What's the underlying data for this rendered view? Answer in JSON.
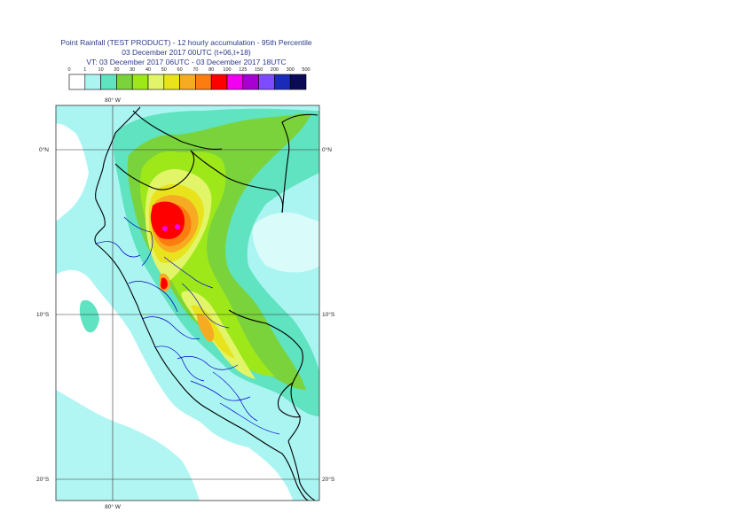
{
  "header": {
    "title": "Point Rainfall (TEST PRODUCT) - 12 hourly accumulation - 95th Percentile",
    "base_time": "03 December 2017 00UTC (t+06,t+18)",
    "valid_time": "VT: 03 December 2017 06UTC - 03 December 2017 18UTC"
  },
  "legend": {
    "thresholds": [
      "0",
      "1",
      "10",
      "20",
      "30",
      "40",
      "50",
      "60",
      "70",
      "80",
      "100",
      "125",
      "150",
      "200",
      "300",
      "500"
    ],
    "colors": [
      "#ffffff",
      "#aaf5f2",
      "#5fe3c0",
      "#7bd33b",
      "#9ee81a",
      "#e2f569",
      "#e8e31c",
      "#f7ab22",
      "#fb7d0f",
      "#ff0000",
      "#f200f2",
      "#a600d2",
      "#7d4cff",
      "#1a2bb8",
      "#0a0a55"
    ]
  },
  "map": {
    "lon_label_top": "80° W",
    "lon_label_bottom": "80° W",
    "lat_labels_left": [
      "0°N",
      "10°S",
      "20°S"
    ],
    "lat_labels_right": [
      "0°N",
      "10°S",
      "20°S"
    ],
    "colors": {
      "light": "#aaf5f2",
      "teal": "#5fe3c0",
      "green": "#7bd33b",
      "lime": "#9ee81a",
      "paleyellow": "#e2f569",
      "yellow": "#e8e31c",
      "orange": "#f7ab22",
      "darkorange": "#fb7d0f",
      "red": "#ff0000",
      "magenta": "#f200f2",
      "border": "#000000",
      "admin": "#0000cc",
      "grid": "#333333"
    }
  }
}
